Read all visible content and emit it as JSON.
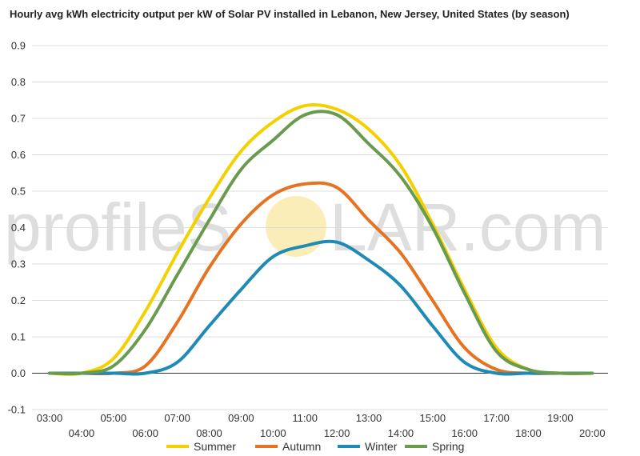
{
  "chart_data": {
    "type": "line",
    "title": "Hourly avg kWh electricity output per kW of Solar PV installed in Lebanon, New Jersey, United States (by season)",
    "watermark": {
      "prefix": "profileS",
      "suffix": "LAR.com"
    },
    "x": [
      "03:00",
      "04:00",
      "05:00",
      "06:00",
      "07:00",
      "08:00",
      "09:00",
      "10:00",
      "11:00",
      "12:00",
      "13:00",
      "14:00",
      "15:00",
      "16:00",
      "17:00",
      "18:00",
      "19:00",
      "20:00"
    ],
    "ylim": [
      -0.1,
      0.9
    ],
    "yticks": [
      "-0.1",
      "0.0",
      "0.1",
      "0.2",
      "0.3",
      "0.4",
      "0.5",
      "0.6",
      "0.7",
      "0.8",
      "0.9"
    ],
    "grid": true,
    "legend_position": "bottom",
    "series": [
      {
        "name": "Summer",
        "color": "#f5d000",
        "values": [
          0.0,
          0.0,
          0.04,
          0.17,
          0.33,
          0.48,
          0.61,
          0.69,
          0.735,
          0.725,
          0.67,
          0.57,
          0.41,
          0.23,
          0.07,
          0.01,
          0.0,
          0.0
        ]
      },
      {
        "name": "Autumn",
        "color": "#e57322",
        "values": [
          0.0,
          0.0,
          0.0,
          0.02,
          0.14,
          0.29,
          0.41,
          0.49,
          0.52,
          0.51,
          0.42,
          0.33,
          0.2,
          0.07,
          0.01,
          0.0,
          0.0,
          0.0
        ]
      },
      {
        "name": "Winter",
        "color": "#1f8ab5",
        "values": [
          0.0,
          0.0,
          0.0,
          0.0,
          0.03,
          0.13,
          0.23,
          0.32,
          0.35,
          0.36,
          0.31,
          0.24,
          0.13,
          0.03,
          0.0,
          0.0,
          0.0,
          0.0
        ]
      },
      {
        "name": "Spring",
        "color": "#6a9a4e",
        "values": [
          0.0,
          0.0,
          0.02,
          0.12,
          0.27,
          0.42,
          0.56,
          0.64,
          0.71,
          0.71,
          0.63,
          0.54,
          0.4,
          0.22,
          0.06,
          0.01,
          0.0,
          0.0
        ]
      }
    ]
  }
}
